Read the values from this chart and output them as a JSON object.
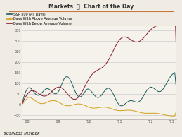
{
  "title": "Markets 🗳 Chart of the Day",
  "title_left": "Markets",
  "title_right": "Chart of the Day",
  "legend_entries": [
    "S&P 500 (All Days)",
    "Days With Above Average Volume",
    "Days With Below Average Volume"
  ],
  "line_colors": [
    "#1a5c5c",
    "#d4a017",
    "#8b1a2a"
  ],
  "x_ticks": [
    "'09",
    "'10",
    "'11",
    "'12",
    "'13"
  ],
  "y_ticks": [
    -50,
    0,
    50,
    100,
    150,
    200,
    250,
    300,
    350
  ],
  "ylim": [
    -70,
    370
  ],
  "xlim": [
    0,
    260
  ],
  "background_color": "#f0ece4",
  "plot_bg": "#f5f2ec",
  "grid_color": "#cccccc",
  "footer": "BUSINESS INSIDER"
}
